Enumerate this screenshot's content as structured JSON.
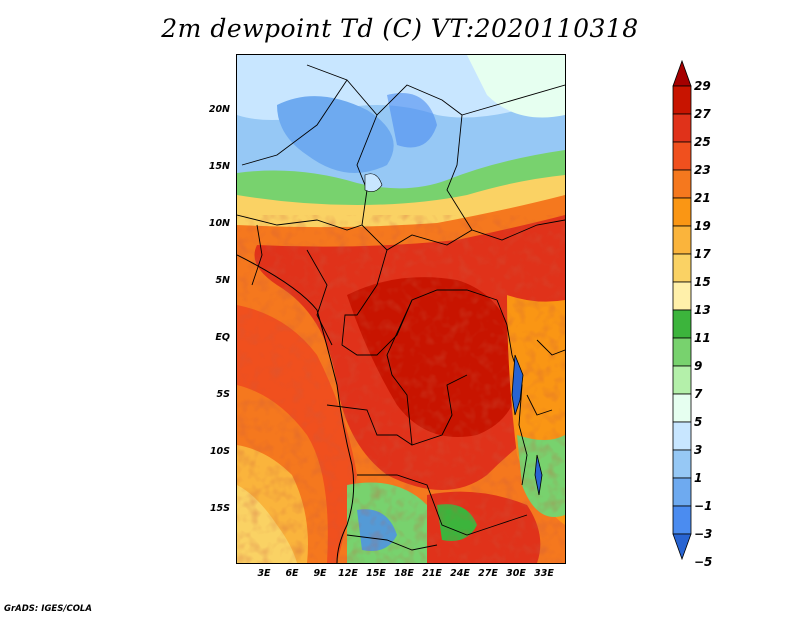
{
  "title": "2m dewpoint Td (C) VT:2020110318",
  "footer": "GrADS: IGES/COLA",
  "lat_labels": [
    "20N",
    "15N",
    "10N",
    "5N",
    "EQ",
    "5S",
    "10S",
    "15S"
  ],
  "lon_labels": [
    "3E",
    "6E",
    "9E",
    "12E",
    "15E",
    "18E",
    "21E",
    "24E",
    "27E",
    "30E",
    "33E"
  ],
  "colorbar": {
    "labels": [
      "29",
      "27",
      "25",
      "23",
      "21",
      "19",
      "17",
      "15",
      "13",
      "11",
      "9",
      "7",
      "5",
      "3",
      "1",
      "−1",
      "−3",
      "−5"
    ],
    "colors": [
      "#a50000",
      "#c81400",
      "#e0321a",
      "#f0501e",
      "#f5781e",
      "#fa9614",
      "#fab43c",
      "#fad264",
      "#fff0aa",
      "#3cb43c",
      "#78d26e",
      "#b4f0aa",
      "#e6fff0",
      "#c8e6ff",
      "#96c8f5",
      "#6eaaf0",
      "#4b8cf0",
      "#2864d2"
    ]
  },
  "map": {
    "region": "Central Africa",
    "variable": "2m dewpoint",
    "units": "C",
    "valid_time": "2020110318"
  }
}
